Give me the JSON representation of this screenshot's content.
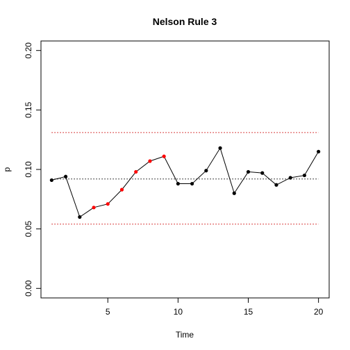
{
  "chart_data": {
    "type": "line",
    "title": "Nelson Rule 3",
    "xlabel": "Time",
    "ylabel": "p",
    "xlim": [
      0.24,
      20.76
    ],
    "ylim": [
      -0.008,
      0.208
    ],
    "x_ticks": [
      5,
      10,
      15,
      20
    ],
    "x_tick_labels": [
      "5",
      "10",
      "15",
      "20"
    ],
    "y_ticks": [
      0.0,
      0.05,
      0.1,
      0.15,
      0.2
    ],
    "y_tick_labels": [
      "0.00",
      "0.05",
      "0.10",
      "0.15",
      "0.20"
    ],
    "grid": false,
    "series": [
      {
        "x": [
          1,
          2,
          3,
          4,
          5,
          6,
          7,
          8,
          9,
          10,
          11,
          12,
          13,
          14,
          15,
          16,
          17,
          18,
          19,
          20
        ],
        "values": [
          0.091,
          0.094,
          0.06,
          0.068,
          0.071,
          0.083,
          0.098,
          0.107,
          0.111,
          0.088,
          0.088,
          0.099,
          0.118,
          0.08,
          0.098,
          0.097,
          0.087,
          0.093,
          0.095,
          0.115
        ],
        "line_color": "#000000",
        "point_color": "#000000",
        "highlight_color": "#ff0000",
        "highlight_indices": [
          3,
          4,
          5,
          6,
          7,
          8
        ]
      }
    ],
    "reference_lines": [
      {
        "kind": "ucl",
        "y": 0.131,
        "color": "#cc0000",
        "style": "dotted"
      },
      {
        "kind": "center",
        "y": 0.092,
        "color": "#000000",
        "style": "dotted"
      },
      {
        "kind": "lcl",
        "y": 0.054,
        "color": "#cc0000",
        "style": "dotted"
      }
    ]
  }
}
